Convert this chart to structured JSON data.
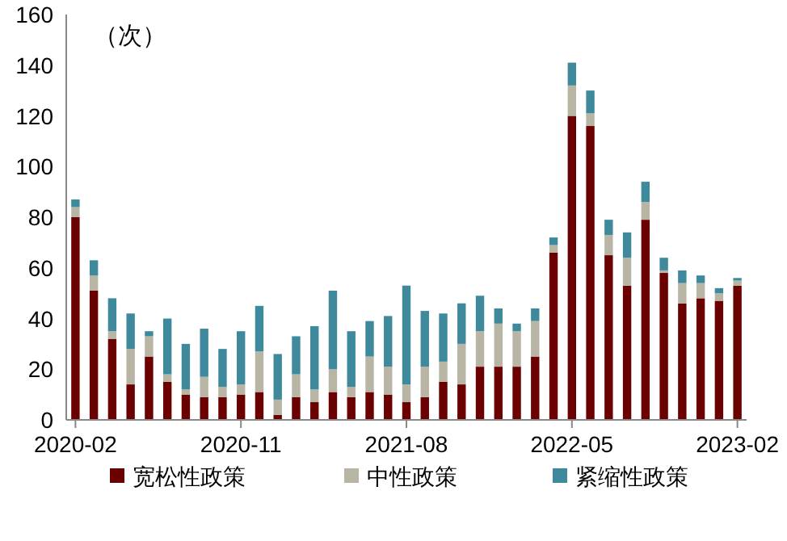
{
  "chart_data": {
    "type": "bar",
    "stacked": true,
    "ylabel": "（次）",
    "categories": [
      "2020-02",
      null,
      null,
      null,
      null,
      null,
      null,
      null,
      null,
      "2020-11",
      null,
      null,
      null,
      null,
      null,
      null,
      null,
      null,
      "2021-08",
      null,
      null,
      null,
      null,
      null,
      null,
      null,
      null,
      "2022-05",
      null,
      null,
      null,
      null,
      null,
      null,
      null,
      null,
      "2023-02"
    ],
    "series": [
      {
        "name": "宽松性政策",
        "color": "#6b0000",
        "values": [
          80,
          51,
          32,
          14,
          25,
          15,
          10,
          9,
          9,
          10,
          11,
          2,
          9,
          7,
          11,
          9,
          11,
          10,
          7,
          9,
          15,
          14,
          21,
          21,
          21,
          25,
          66,
          120,
          116,
          65,
          53,
          79,
          58,
          46,
          48,
          47,
          53
        ]
      },
      {
        "name": "中性政策",
        "color": "#b8b5a5",
        "values": [
          4,
          6,
          3,
          14,
          8,
          3,
          2,
          8,
          4,
          4,
          16,
          6,
          9,
          5,
          9,
          4,
          14,
          11,
          7,
          12,
          8,
          16,
          14,
          17,
          14,
          14,
          3,
          12,
          5,
          8,
          11,
          7,
          1,
          8,
          6,
          3,
          2
        ]
      },
      {
        "name": "紧缩性政策",
        "color": "#3e8a9c",
        "values": [
          3,
          6,
          13,
          14,
          2,
          22,
          18,
          19,
          15,
          21,
          18,
          18,
          15,
          25,
          31,
          22,
          14,
          20,
          39,
          22,
          19,
          16,
          14,
          6,
          3,
          5,
          3,
          9,
          9,
          6,
          10,
          8,
          5,
          5,
          3,
          2,
          1
        ]
      }
    ],
    "ylim": [
      0,
      160
    ],
    "yticks": [
      0,
      20,
      40,
      60,
      80,
      100,
      120,
      140,
      160
    ],
    "grid": false,
    "legend": "bottom"
  }
}
